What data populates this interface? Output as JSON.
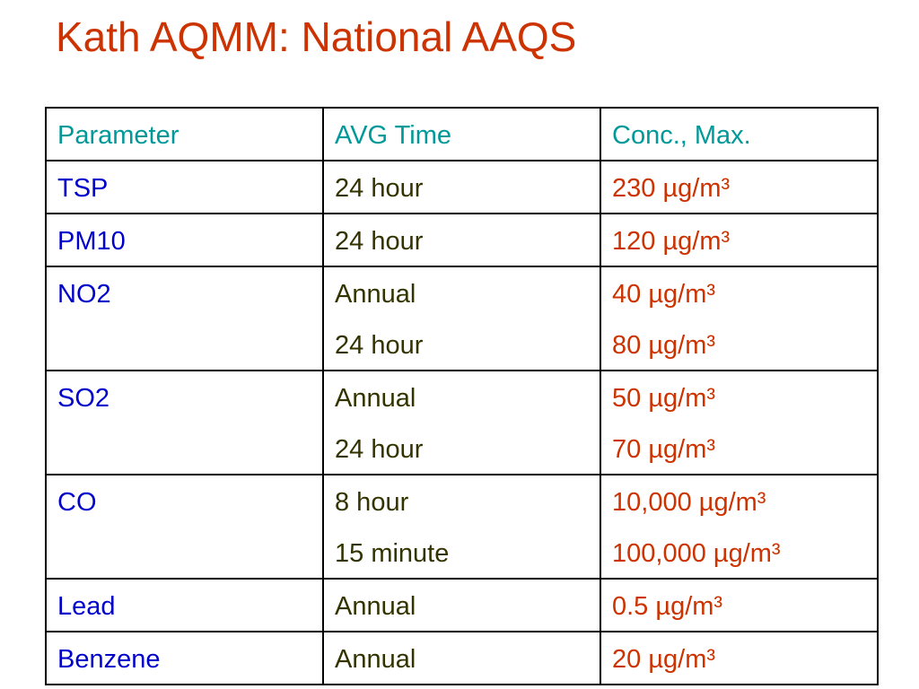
{
  "title": "Kath AQMM: National AAQS",
  "table": {
    "header": [
      "Parameter",
      "AVG Time",
      "Conc., Max."
    ],
    "rows": [
      {
        "parameter": "TSP",
        "avg_time": [
          "24 hour"
        ],
        "conc": [
          "230 µg/m³"
        ]
      },
      {
        "parameter": "PM10",
        "avg_time": [
          "24 hour"
        ],
        "conc": [
          "120 µg/m³"
        ]
      },
      {
        "parameter": "NO2",
        "avg_time": [
          "Annual",
          "24 hour"
        ],
        "conc": [
          "40 µg/m³",
          "80 µg/m³"
        ]
      },
      {
        "parameter": "SO2",
        "avg_time": [
          "Annual",
          "24 hour"
        ],
        "conc": [
          "50 µg/m³",
          "70 µg/m³"
        ]
      },
      {
        "parameter": "CO",
        "avg_time": [
          "8 hour",
          "15 minute"
        ],
        "conc": [
          "10,000 µg/m³",
          "100,000 µg/m³"
        ]
      },
      {
        "parameter": "Lead",
        "avg_time": [
          "Annual"
        ],
        "conc": [
          "0.5 µg/m³"
        ]
      },
      {
        "parameter": "Benzene",
        "avg_time": [
          "Annual"
        ],
        "conc": [
          "20 µg/m³"
        ]
      }
    ]
  }
}
